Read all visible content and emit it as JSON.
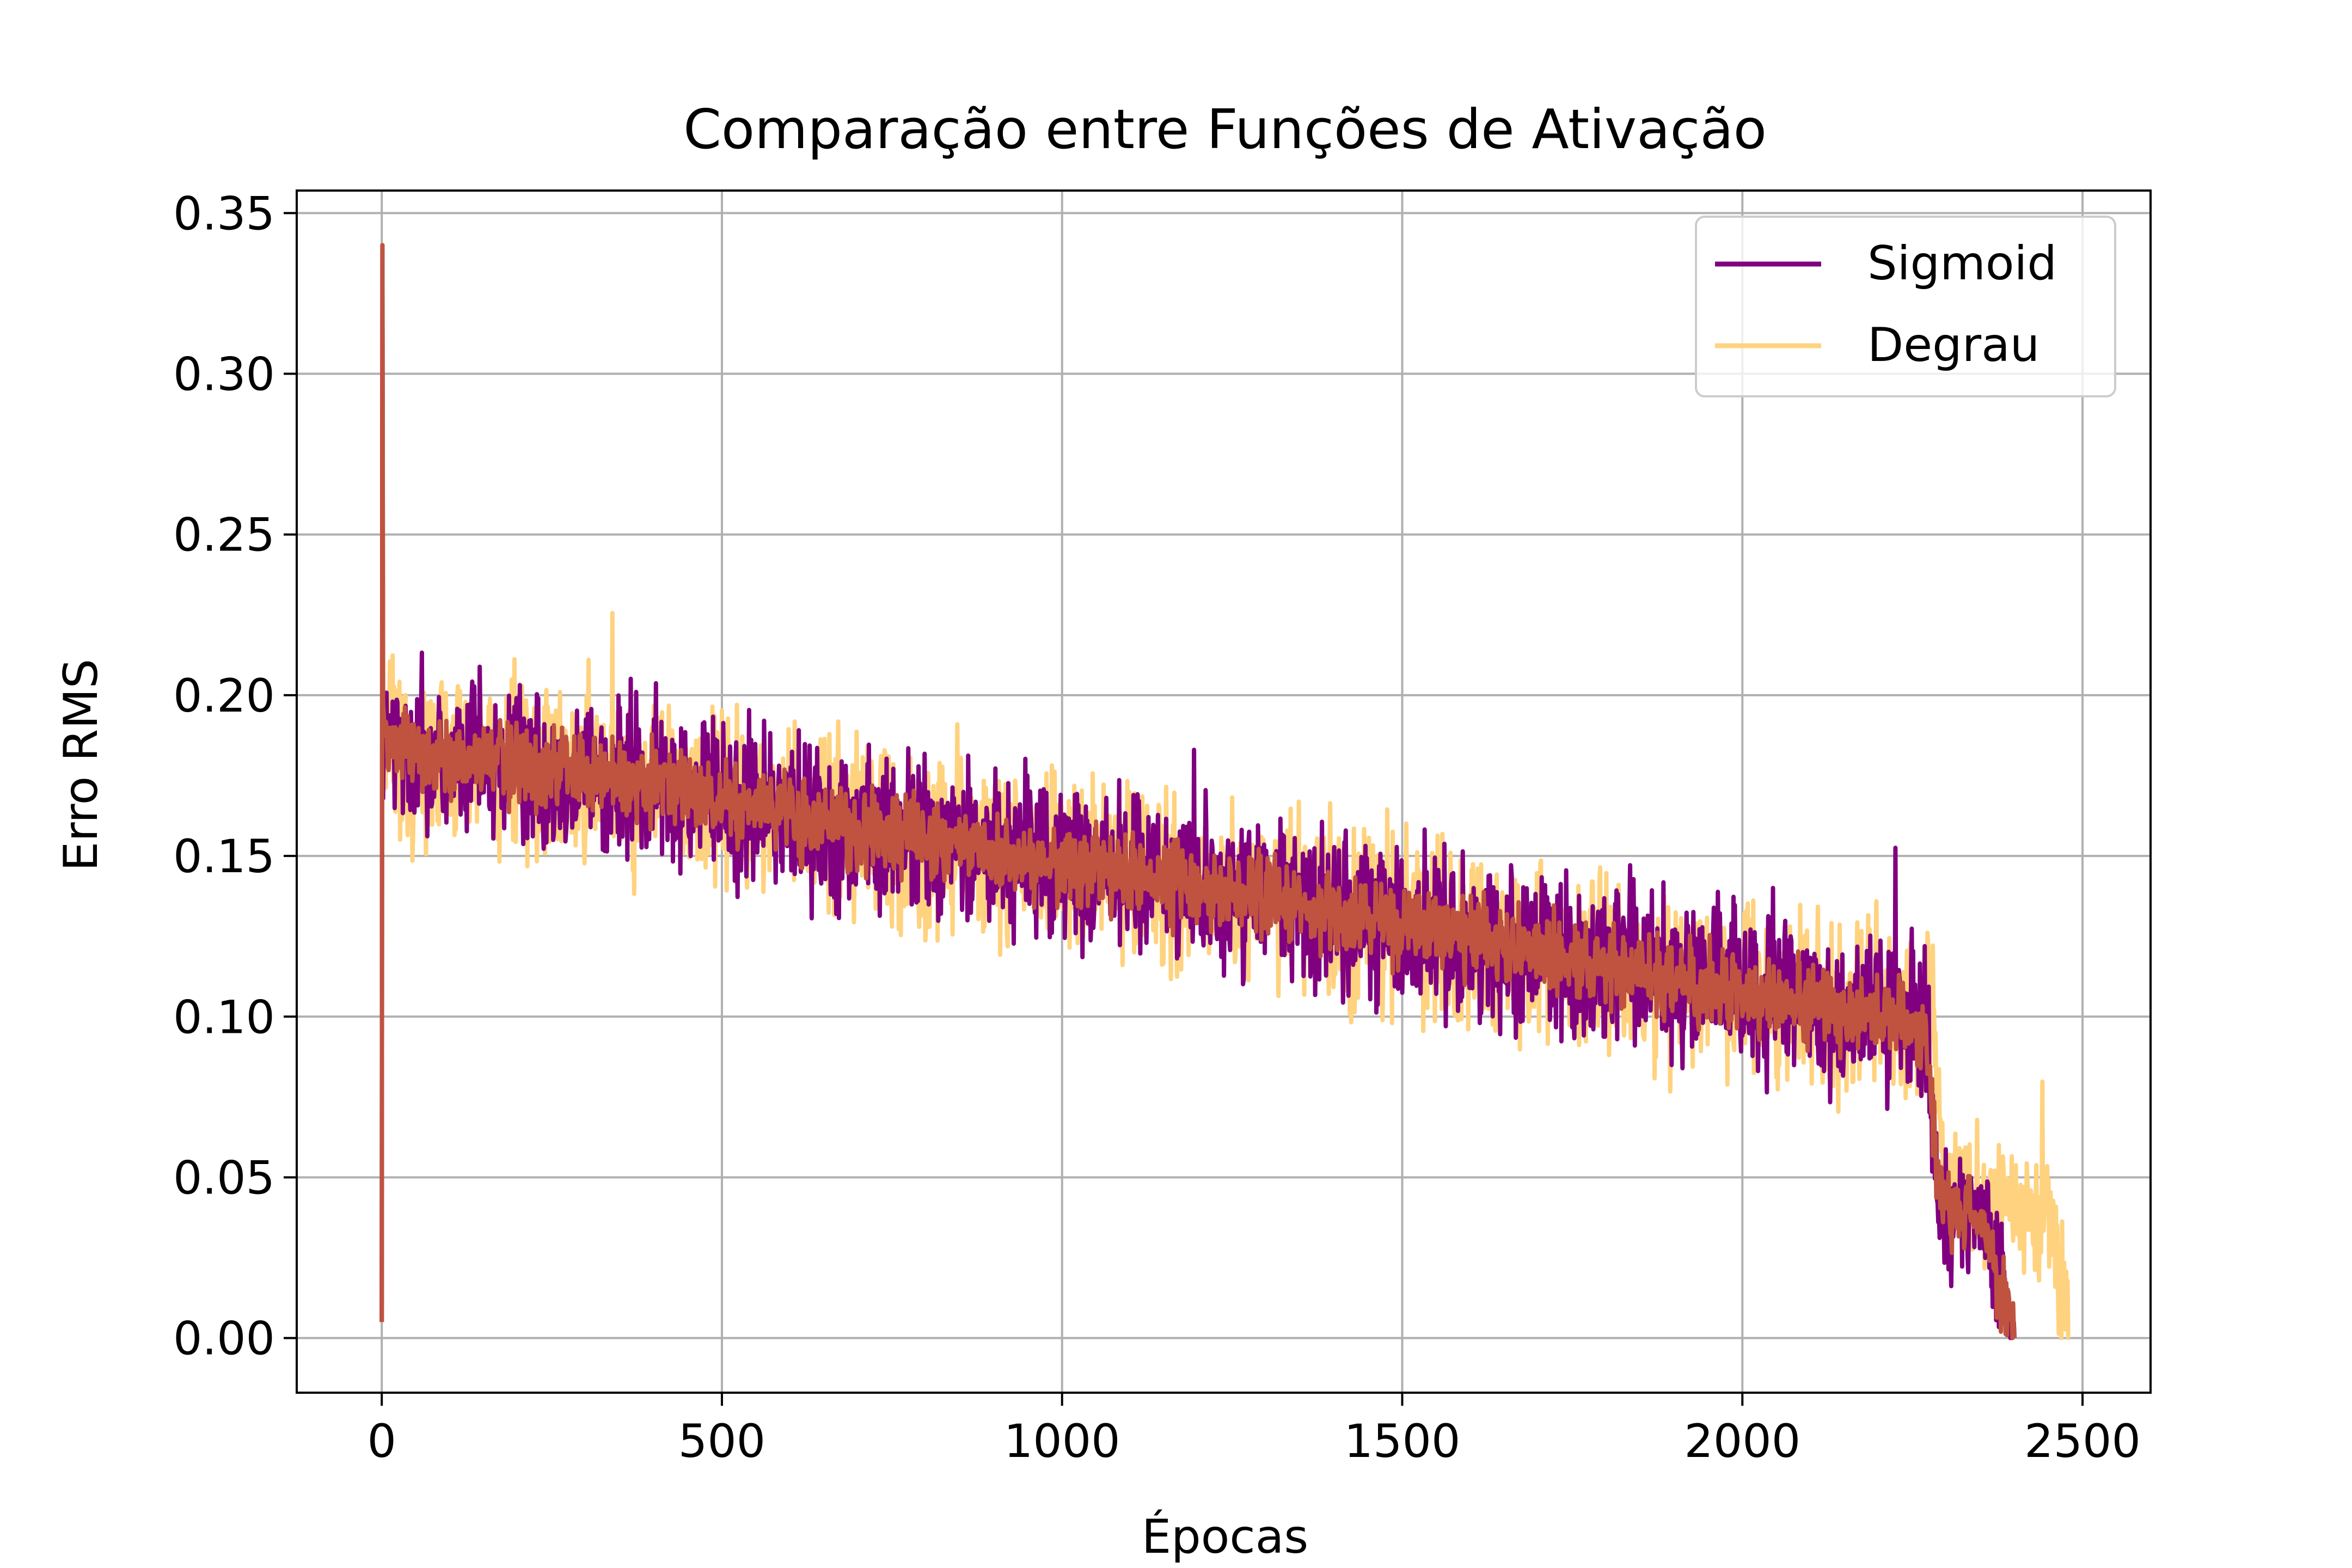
{
  "chart_data": {
    "type": "line",
    "title": "Comparação entre Funções de Ativação",
    "xlabel": "Épocas",
    "ylabel": "Erro RMS",
    "xlim": [
      -125,
      2600
    ],
    "ylim": [
      -0.017,
      0.357
    ],
    "xticks": [
      0,
      500,
      1000,
      1500,
      2000,
      2500
    ],
    "xtick_labels": [
      "0",
      "500",
      "1000",
      "1500",
      "2000",
      "2500"
    ],
    "yticks": [
      0.0,
      0.05,
      0.1,
      0.15,
      0.2,
      0.25,
      0.3,
      0.35
    ],
    "ytick_labels": [
      "0.00",
      "0.05",
      "0.10",
      "0.15",
      "0.20",
      "0.25",
      "0.30",
      "0.35"
    ],
    "grid": true,
    "legend_position": "top-right",
    "series": [
      {
        "name": "Sigmoid",
        "color": "#800080",
        "x": [
          0,
          1,
          2,
          10,
          40,
          100,
          150,
          200,
          250,
          300,
          400,
          500,
          600,
          700,
          800,
          900,
          1000,
          1100,
          1200,
          1300,
          1400,
          1500,
          1600,
          1700,
          1800,
          1900,
          2000,
          2100,
          2200,
          2270,
          2285,
          2300,
          2350,
          2400
        ],
        "y": [
          0.005,
          0.34,
          0.19,
          0.185,
          0.182,
          0.18,
          0.179,
          0.178,
          0.177,
          0.175,
          0.172,
          0.168,
          0.163,
          0.158,
          0.155,
          0.152,
          0.148,
          0.145,
          0.141,
          0.137,
          0.133,
          0.128,
          0.124,
          0.12,
          0.116,
          0.112,
          0.108,
          0.104,
          0.1,
          0.097,
          0.05,
          0.04,
          0.038,
          0.0
        ],
        "noise": 0.024,
        "points": 2400
      },
      {
        "name": "Degrau",
        "color": "#FFD27F",
        "x": [
          0,
          1,
          2,
          10,
          40,
          100,
          150,
          200,
          250,
          300,
          400,
          500,
          600,
          700,
          800,
          900,
          1000,
          1100,
          1200,
          1300,
          1400,
          1500,
          1600,
          1700,
          1800,
          1900,
          2000,
          2100,
          2200,
          2280,
          2295,
          2300,
          2350,
          2400,
          2450,
          2480
        ],
        "y": [
          0.005,
          0.31,
          0.19,
          0.185,
          0.182,
          0.18,
          0.179,
          0.178,
          0.177,
          0.175,
          0.172,
          0.168,
          0.163,
          0.158,
          0.155,
          0.152,
          0.148,
          0.145,
          0.141,
          0.137,
          0.133,
          0.128,
          0.124,
          0.12,
          0.116,
          0.112,
          0.108,
          0.104,
          0.1,
          0.1,
          0.055,
          0.045,
          0.042,
          0.04,
          0.04,
          0.0
        ],
        "noise": 0.026,
        "points": 2480
      }
    ]
  }
}
